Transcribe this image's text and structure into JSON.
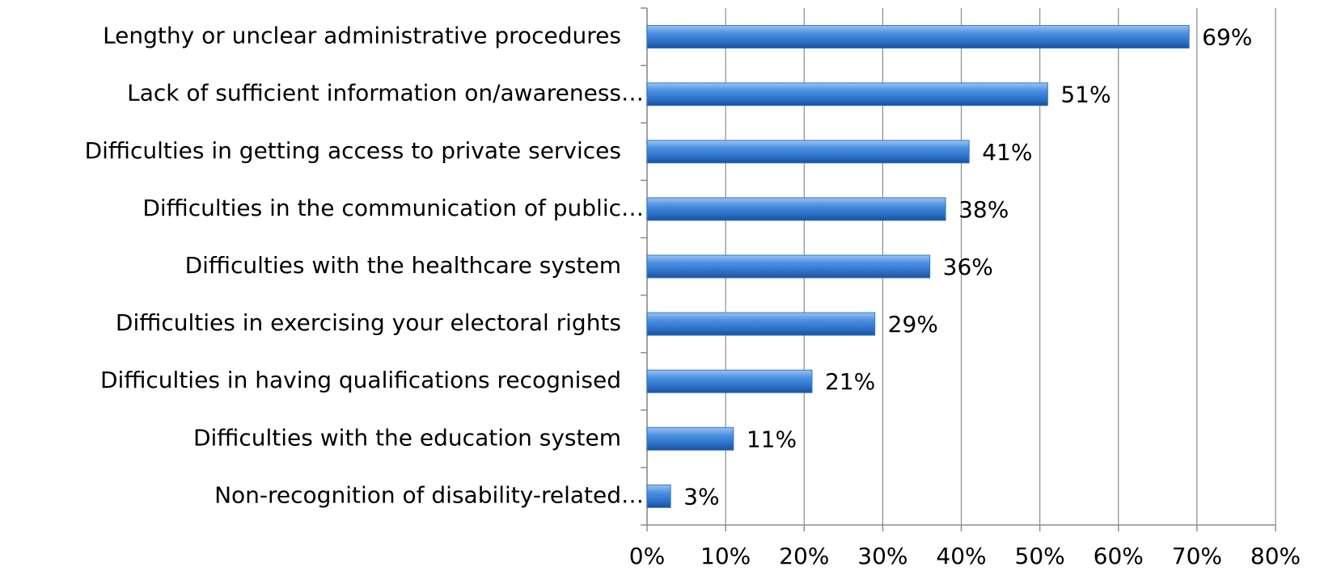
{
  "chart_data": {
    "type": "bar",
    "orientation": "horizontal",
    "categories": [
      "Lengthy or unclear administrative procedures",
      "Lack of sufficient information on/awareness…",
      "Difficulties in getting access to private services",
      "Difficulties in the communication of public…",
      "Difficulties with the healthcare system",
      "Difficulties in exercising your electoral rights",
      "Difficulties in having qualifications recognised",
      "Difficulties with the education system",
      "Non-recognition of disability-related…"
    ],
    "values": [
      69,
      51,
      41,
      38,
      36,
      29,
      21,
      11,
      3
    ],
    "value_labels": [
      "69%",
      "51%",
      "41%",
      "38%",
      "36%",
      "29%",
      "21%",
      "11%",
      "3%"
    ],
    "color": "#2f78d2",
    "xlim": [
      0,
      80
    ],
    "xticks": [
      {
        "value": 0,
        "label": "0%"
      },
      {
        "value": 10,
        "label": "10%"
      },
      {
        "value": 20,
        "label": "20%"
      },
      {
        "value": 30,
        "label": "30%"
      },
      {
        "value": 40,
        "label": "40%"
      },
      {
        "value": 50,
        "label": "50%"
      },
      {
        "value": 60,
        "label": "60%"
      },
      {
        "value": 70,
        "label": "70%"
      },
      {
        "value": 80,
        "label": "80%"
      }
    ],
    "grid": true
  }
}
